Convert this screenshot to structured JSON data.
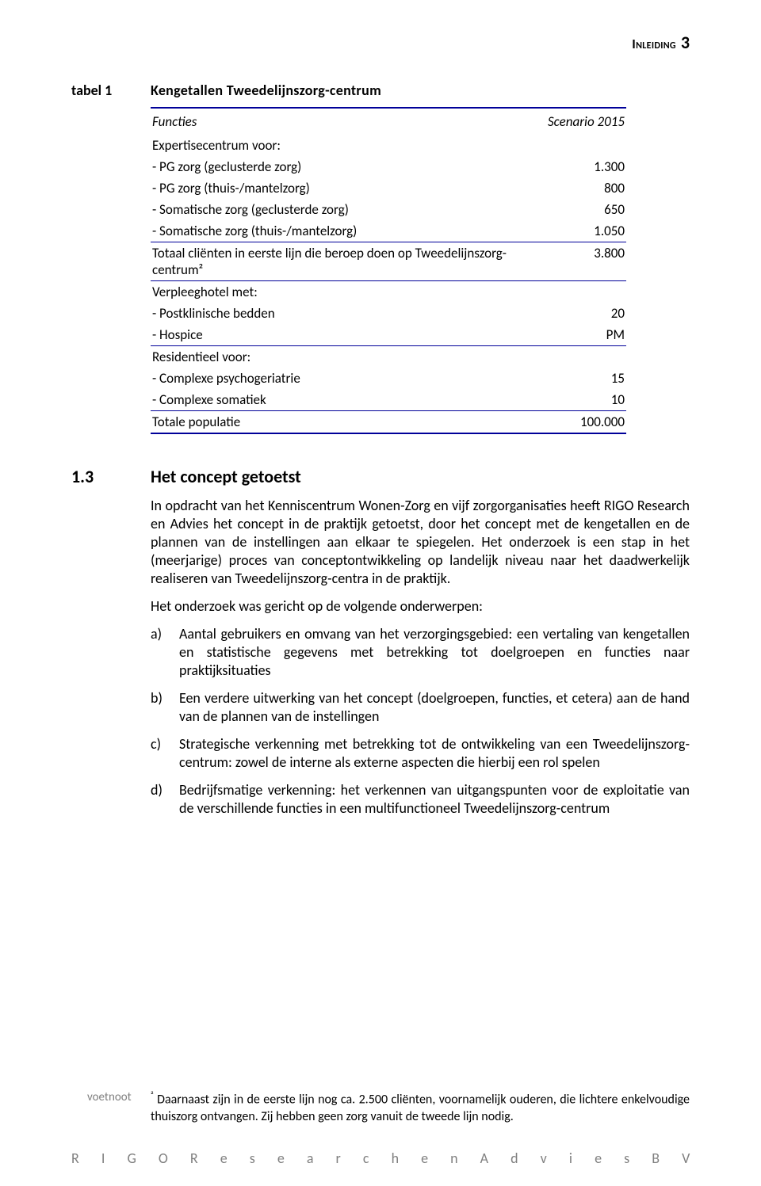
{
  "header": {
    "chapter": "Inleiding",
    "page": "3"
  },
  "table": {
    "label": "tabel 1",
    "title": "Kengetallen Tweedelijnszorg-centrum",
    "col_label": "Functies",
    "col_value": "Scenario 2015",
    "rows": [
      {
        "label": "Expertisecentrum voor:",
        "value": "",
        "head": true
      },
      {
        "label": "- PG zorg (geclusterde zorg)",
        "value": "1.300"
      },
      {
        "label": "- PG zorg (thuis-/mantelzorg)",
        "value": "800"
      },
      {
        "label": "- Somatische zorg (geclusterde zorg)",
        "value": "650"
      },
      {
        "label": "- Somatische zorg (thuis-/mantelzorg)",
        "value": "1.050"
      },
      {
        "label": "Totaal cliënten in eerste lijn die beroep doen op Tweedelijnszorg-centrum²",
        "value": "3.800",
        "topline": true
      },
      {
        "label": "Verpleeghotel met:",
        "value": "",
        "head": true,
        "topline": true
      },
      {
        "label": "- Postklinische bedden",
        "value": "20"
      },
      {
        "label": "- Hospice",
        "value": "PM"
      },
      {
        "label": "Residentieel voor:",
        "value": "",
        "head": true,
        "topline": true
      },
      {
        "label": "- Complexe psychogeriatrie",
        "value": "15"
      },
      {
        "label": "- Complexe somatiek",
        "value": "10"
      },
      {
        "label": "Totale populatie",
        "value": "100.000",
        "topline": true
      }
    ],
    "colors": {
      "rule": "#000099",
      "text": "#000000"
    },
    "font_size_pt": 12
  },
  "section": {
    "num": "1.3",
    "title": "Het concept getoetst",
    "p1": "In opdracht van het Kenniscentrum Wonen-Zorg en vijf zorgorganisaties heeft RIGO Research en Advies het concept in de praktijk getoetst, door het concept met de kengetallen en de plannen van de instellingen aan elkaar te spiegelen. Het onderzoek is een stap in het (meerjarige) proces van conceptontwikkeling op landelijk niveau naar het daadwerkelijk realiseren van Tweedelijnszorg-centra in de praktijk.",
    "p2": "Het onderzoek was gericht op de volgende onderwerpen:",
    "items": [
      {
        "m": "a)",
        "t": "Aantal gebruikers en omvang van het verzorgingsgebied: een vertaling van kengetallen en statistische gegevens met betrekking tot doelgroepen en functies naar praktijksituaties"
      },
      {
        "m": "b)",
        "t": "Een verdere uitwerking van het concept (doelgroepen, functies, et cetera) aan de hand van de plannen van de instellingen"
      },
      {
        "m": "c)",
        "t": "Strategische verkenning met betrekking tot de ontwikkeling van een Tweedelijnszorg-centrum: zowel de interne als externe aspecten die hierbij een rol spelen"
      },
      {
        "m": "d)",
        "t": "Bedrijfsmatige verkenning: het verkennen van uitgangspunten voor de exploitatie van de verschillende functies in een multifunctioneel Tweedelijnszorg-centrum"
      }
    ]
  },
  "footnote": {
    "side_label": "voetnoot",
    "marker": "²",
    "text": "Daarnaast zijn in de eerste lijn nog ca. 2.500 cliënten, voornamelijk ouderen, die lichtere enkelvoudige thuiszorg ontvangen. Zij hebben geen zorg vanuit de tweede lijn nodig."
  },
  "footer": "R I G O   R e s e a r c h   e n   A d v i e s   B V"
}
